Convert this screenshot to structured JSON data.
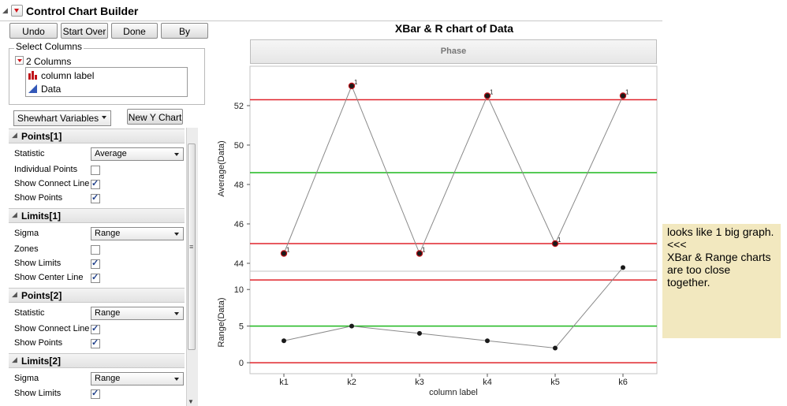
{
  "header": {
    "title": "Control Chart Builder"
  },
  "toolbar": {
    "undo": "Undo",
    "start_over": "Start Over",
    "done": "Done",
    "by": "By"
  },
  "select_columns": {
    "label": "Select Columns",
    "count_label": "2 Columns",
    "columns": [
      "column label",
      "Data"
    ]
  },
  "chart_type_select": "Shewhart Variables",
  "new_y_chart": "New Y Chart",
  "panel": {
    "points1": {
      "title": "Points[1]",
      "statistic_label": "Statistic",
      "statistic_value": "Average",
      "individual_points": "Individual Points",
      "show_connect_line": "Show Connect Line",
      "show_points": "Show Points"
    },
    "limits1": {
      "title": "Limits[1]",
      "sigma_label": "Sigma",
      "sigma_value": "Range",
      "zones": "Zones",
      "show_limits": "Show Limits",
      "show_center_line": "Show Center Line"
    },
    "points2": {
      "title": "Points[2]",
      "statistic_label": "Statistic",
      "statistic_value": "Range",
      "show_connect_line": "Show Connect Line",
      "show_points": "Show Points"
    },
    "limits2": {
      "title": "Limits[2]",
      "sigma_label": "Sigma",
      "sigma_value": "Range",
      "show_limits": "Show Limits"
    }
  },
  "chart": {
    "title": "XBar & R chart of Data",
    "phase_label": "Phase"
  },
  "note": {
    "lines": [
      "looks like 1 big graph.",
      "",
      "<<<",
      "",
      "XBar & Range charts are too close together."
    ]
  },
  "colors": {
    "limit": "#e0242b",
    "center": "#1fb81f",
    "point": "#1a1a1a",
    "flag_point": "#c0141a"
  },
  "chart_data": [
    {
      "type": "line",
      "ylabel": "Average(Data)",
      "categories": [
        "k1",
        "k2",
        "k3",
        "k4",
        "k5",
        "k6"
      ],
      "values": [
        44.5,
        53.0,
        44.5,
        52.5,
        45.0,
        52.5
      ],
      "flags": [
        "1",
        "1",
        "1",
        "1",
        "1",
        "1"
      ],
      "ucl": 52.3,
      "center": 48.6,
      "lcl": 45.0,
      "ylim": [
        43.6,
        54.0
      ],
      "yticks": [
        44,
        46,
        48,
        50,
        52
      ]
    },
    {
      "type": "line",
      "ylabel": "Range(Data)",
      "xlabel": "column label",
      "categories": [
        "k1",
        "k2",
        "k3",
        "k4",
        "k5",
        "k6"
      ],
      "values": [
        3,
        5,
        4,
        3,
        2,
        13
      ],
      "ucl": 11.3,
      "center": 5.0,
      "lcl": 0,
      "ylim": [
        -1.5,
        12.5
      ],
      "yticks": [
        0,
        5,
        10
      ]
    }
  ]
}
